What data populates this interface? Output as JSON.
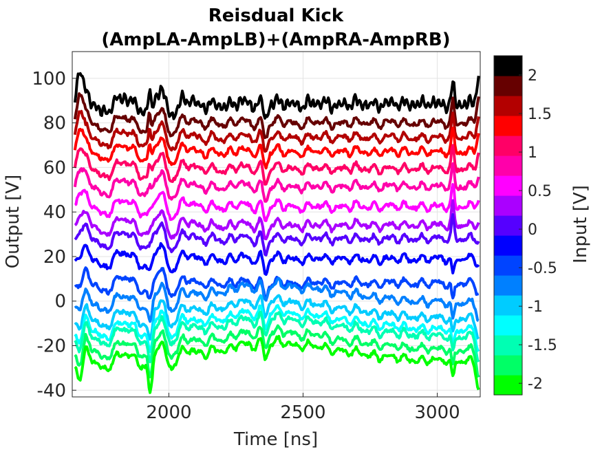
{
  "chart_data": {
    "type": "line",
    "title": "Reisdual Kick",
    "subtitle": "(AmpLA-AmpLB)+(AmpRA-AmpRB)",
    "xlabel": "Time [ns]",
    "ylabel": "Output [V]",
    "xlim": [
      1640,
      3160
    ],
    "ylim": [
      -43,
      112
    ],
    "xticks": [
      2000,
      2500,
      3000
    ],
    "yticks": [
      -40,
      -20,
      0,
      20,
      40,
      60,
      80,
      100
    ],
    "xtick_labels": [
      "2000",
      "2500",
      "3000"
    ],
    "ytick_labels": [
      "-40",
      "-20",
      "0",
      "20",
      "40",
      "60",
      "80",
      "100"
    ],
    "grid": true,
    "colorbar": {
      "label": "Input [V]",
      "range": [
        -2.15,
        2.25
      ],
      "ticks": [
        -2,
        -1.5,
        -1,
        -0.5,
        0,
        0.5,
        1,
        1.5,
        2
      ],
      "tick_labels": [
        "-2",
        "-1.5",
        "-1",
        "-0.5",
        "0",
        "0.5",
        "1",
        "1.5",
        "2"
      ],
      "colors": [
        "#00ff00",
        "#00ff66",
        "#00ffb3",
        "#00ffff",
        "#00ccff",
        "#0080ff",
        "#0044ff",
        "#0000ff",
        "#5500ff",
        "#aa00ff",
        "#ff00ff",
        "#ff00aa",
        "#ff0066",
        "#ff0000",
        "#b30000",
        "#660000",
        "#000000"
      ]
    },
    "series": [
      {
        "input": 2.0,
        "color": "#000000",
        "baseline": 88.5
      },
      {
        "input": 1.75,
        "color": "#660000",
        "baseline": 80
      },
      {
        "input": 1.5,
        "color": "#b30000",
        "baseline": 73.5
      },
      {
        "input": 1.25,
        "color": "#ff0000",
        "baseline": 67
      },
      {
        "input": 1.0,
        "color": "#ff0066",
        "baseline": 59.5
      },
      {
        "input": 0.75,
        "color": "#ff00aa",
        "baseline": 51.5
      },
      {
        "input": 0.5,
        "color": "#ff00ff",
        "baseline": 42.5
      },
      {
        "input": 0.25,
        "color": "#aa00ff",
        "baseline": 34
      },
      {
        "input": 0.0,
        "color": "#5500ff",
        "baseline": 28
      },
      {
        "input": -0.25,
        "color": "#0000ff",
        "baseline": 19
      },
      {
        "input": -0.5,
        "color": "#0044ff",
        "baseline": 8
      },
      {
        "input": -0.75,
        "color": "#0080ff",
        "baseline": -1
      },
      {
        "input": -1.0,
        "color": "#00ccff",
        "baseline": -8
      },
      {
        "input": -1.25,
        "color": "#00ffff",
        "baseline": -13
      },
      {
        "input": -1.5,
        "color": "#00ffb3",
        "baseline": -16
      },
      {
        "input": -1.75,
        "color": "#00ff66",
        "baseline": -22
      },
      {
        "input": -2.0,
        "color": "#00ff00",
        "baseline": -27
      }
    ]
  }
}
